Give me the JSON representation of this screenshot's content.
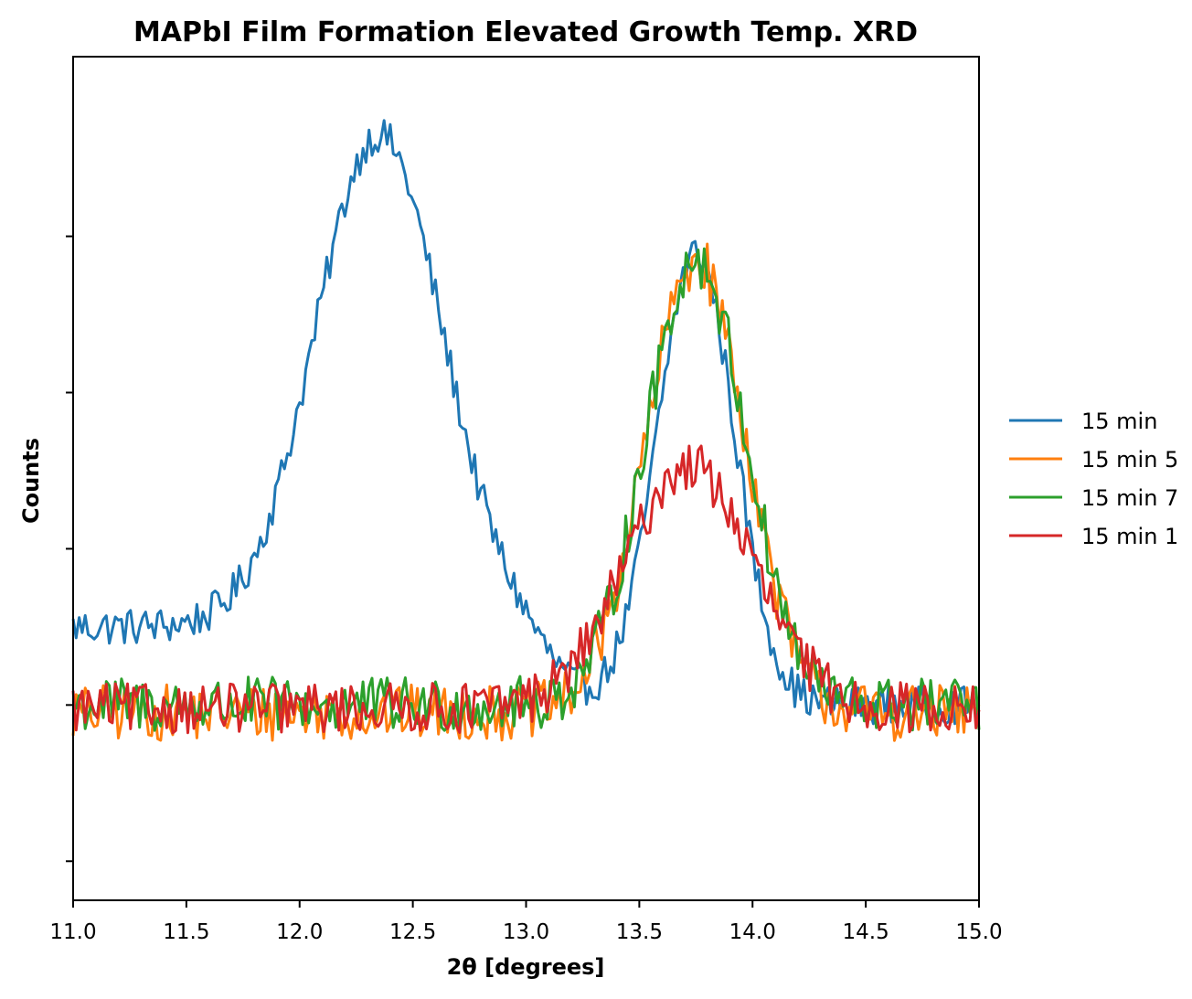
{
  "chart_data": {
    "type": "line",
    "title": "MAPbI Film Formation Elevated Growth Temp. XRD",
    "xlabel": "2θ [degrees]",
    "ylabel": "Counts",
    "xlim": [
      11.0,
      15.0
    ],
    "ylim": [
      -0.25,
      5.15
    ],
    "x_ticks": [
      "11.0",
      "11.5",
      "12.0",
      "12.5",
      "13.0",
      "13.5",
      "14.0",
      "14.5",
      "15.0"
    ],
    "y_ticks_labeled": false,
    "grid": false,
    "legend_position": "outside-right",
    "series": [
      {
        "name": "15 min",
        "color": "#1f77b4",
        "peak_center": 12.35,
        "peak_height": 3.15,
        "peak_width": 0.28,
        "secondary_peak_center": 13.75,
        "secondary_peak_height": 2.9,
        "secondary_peak_width": 0.17,
        "baseline": 1.5,
        "noise": 0.12
      },
      {
        "name": "15 min 5",
        "color": "#ff7f0e",
        "peak_center": 13.75,
        "peak_height": 2.9,
        "peak_width": 0.22,
        "baseline": 0.95,
        "noise": 0.18
      },
      {
        "name": "15 min 7",
        "color": "#2ca02c",
        "peak_center": 13.75,
        "peak_height": 2.85,
        "peak_width": 0.22,
        "baseline": 1.0,
        "noise": 0.18
      },
      {
        "name": "15 min 1",
        "color": "#d62728",
        "peak_center": 13.72,
        "peak_height": 1.55,
        "peak_width": 0.28,
        "baseline": 0.98,
        "noise": 0.16
      }
    ]
  }
}
